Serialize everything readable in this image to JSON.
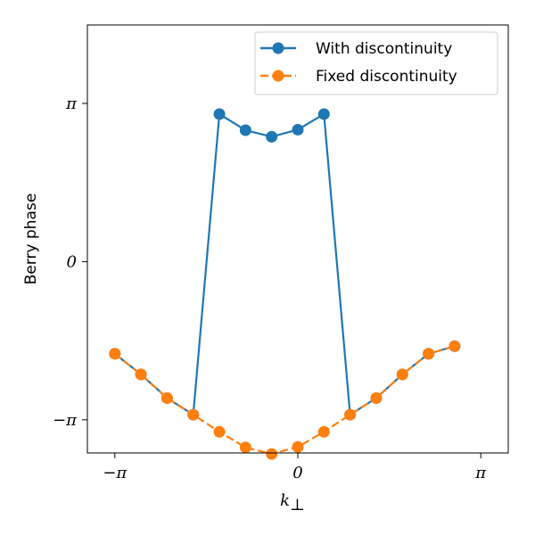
{
  "chart_data": {
    "type": "line",
    "title": "",
    "xlabel": "k",
    "xlabel_subscript": "⊥",
    "ylabel": "Berry phase",
    "xlim": [
      -3.6128,
      3.6128
    ],
    "ylim": [
      -3.8,
      4.7
    ],
    "xticks": [
      {
        "value": -3.14159,
        "label": "−π"
      },
      {
        "value": 0,
        "label": "0"
      },
      {
        "value": 3.14159,
        "label": "π"
      }
    ],
    "yticks": [
      {
        "value": -3.14159,
        "label": "−π"
      },
      {
        "value": 0,
        "label": "0"
      },
      {
        "value": 3.14159,
        "label": "π"
      }
    ],
    "grid": false,
    "legend": "top-right",
    "x": [
      -3.1416,
      -2.6928,
      -2.244,
      -1.7952,
      -1.3464,
      -0.8976,
      -0.4488,
      0.0,
      0.4488,
      0.8976,
      1.3464,
      1.7952,
      2.244,
      2.6928
    ],
    "series": [
      {
        "name": "With discontinuity",
        "color": "#1f77b4",
        "linestyle": "solid",
        "values": [
          -1.83,
          -2.24,
          -2.71,
          -3.04,
          2.93,
          2.61,
          2.48,
          2.62,
          2.93,
          -3.04,
          -2.71,
          -2.24,
          -1.83,
          -1.68
        ]
      },
      {
        "name": "Fixed discontinuity",
        "color": "#ff7f0e",
        "linestyle": "dashed",
        "values": [
          -1.83,
          -2.24,
          -2.71,
          -3.04,
          -3.38,
          -3.69,
          -3.82,
          -3.68,
          -3.38,
          -3.04,
          -2.71,
          -2.24,
          -1.83,
          -1.68
        ]
      }
    ]
  }
}
